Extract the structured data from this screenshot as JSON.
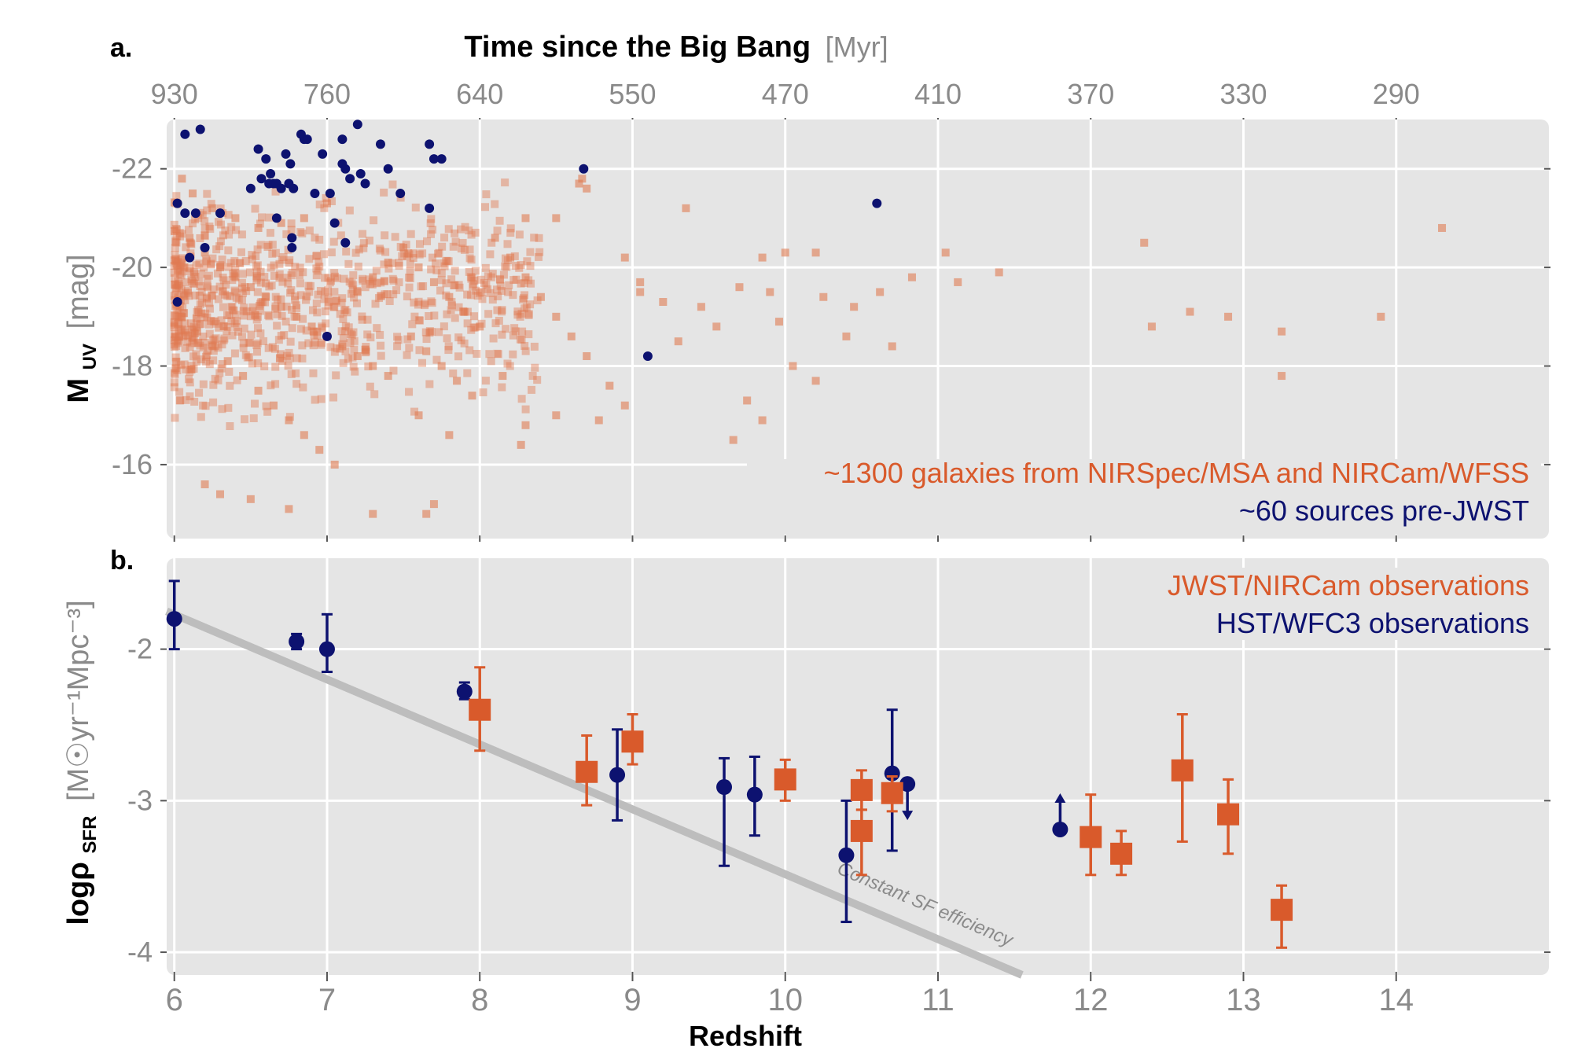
{
  "chart_data": [
    {
      "panel": "a.",
      "type": "scatter",
      "top_axis": {
        "title": "Time since the Big Bang",
        "unit": "[Myr]",
        "tick_labels": [
          "930",
          "760",
          "640",
          "550",
          "470",
          "410",
          "370",
          "330",
          "290"
        ],
        "tick_redshifts": [
          6,
          7,
          8,
          9,
          10,
          11,
          12,
          13,
          14
        ]
      },
      "ylabel": "M",
      "ylabel_sub": "UV",
      "ylabel_unit": "[mag]",
      "ylim": [
        -14.5,
        -23.0
      ],
      "yticks": [
        -22,
        -20,
        -18,
        -16
      ],
      "xlim": [
        5.95,
        15.0
      ],
      "legend": {
        "orange": "~1300 galaxies from NIRSpec/MSA and NIRCam/WFSS",
        "navy": "~60 sources pre-JWST"
      },
      "colors": {
        "orange": "#e07b52",
        "navy": "#0d1270"
      },
      "series_navy_pre_jwst": [
        [
          6.07,
          -22.7
        ],
        [
          6.17,
          -22.8
        ],
        [
          6.02,
          -21.3
        ],
        [
          6.07,
          -21.1
        ],
        [
          6.14,
          -21.1
        ],
        [
          6.02,
          -19.3
        ],
        [
          6.1,
          -20.2
        ],
        [
          6.2,
          -20.4
        ],
        [
          6.3,
          -21.1
        ],
        [
          6.5,
          -21.6
        ],
        [
          6.55,
          -22.4
        ],
        [
          6.6,
          -22.2
        ],
        [
          6.63,
          -21.9
        ],
        [
          6.57,
          -21.8
        ],
        [
          6.65,
          -21.7
        ],
        [
          6.62,
          -21.7
        ],
        [
          6.67,
          -21.7
        ],
        [
          6.7,
          -21.6
        ],
        [
          6.73,
          -22.3
        ],
        [
          6.76,
          -22.1
        ],
        [
          6.75,
          -21.7
        ],
        [
          6.78,
          -21.6
        ],
        [
          6.83,
          -22.7
        ],
        [
          6.85,
          -22.6
        ],
        [
          6.87,
          -22.6
        ],
        [
          6.92,
          -21.5
        ],
        [
          6.97,
          -22.3
        ],
        [
          6.67,
          -21.0
        ],
        [
          6.77,
          -20.6
        ],
        [
          6.77,
          -20.4
        ],
        [
          7.02,
          -21.5
        ],
        [
          7.05,
          -20.9
        ],
        [
          7.1,
          -22.6
        ],
        [
          7.1,
          -22.1
        ],
        [
          7.12,
          -22.0
        ],
        [
          7.15,
          -21.8
        ],
        [
          7.2,
          -22.9
        ],
        [
          7.22,
          -21.9
        ],
        [
          7.25,
          -21.7
        ],
        [
          7.35,
          -22.5
        ],
        [
          7.4,
          -22.0
        ],
        [
          7.48,
          -21.5
        ],
        [
          7.67,
          -22.5
        ],
        [
          7.7,
          -22.2
        ],
        [
          7.75,
          -22.2
        ],
        [
          7.67,
          -21.2
        ],
        [
          7.0,
          -18.6
        ],
        [
          7.12,
          -20.5
        ],
        [
          8.68,
          -22.0
        ],
        [
          9.1,
          -18.2
        ],
        [
          10.6,
          -21.3
        ]
      ],
      "series_orange_jwst_sample": [
        [
          6.05,
          -21.8
        ],
        [
          6.12,
          -21.5
        ],
        [
          6.25,
          -21.2
        ],
        [
          6.4,
          -21.0
        ],
        [
          6.55,
          -20.8
        ],
        [
          6.7,
          -20.9
        ],
        [
          6.85,
          -21.0
        ],
        [
          7.0,
          -21.3
        ],
        [
          6.1,
          -20.6
        ],
        [
          6.2,
          -20.3
        ],
        [
          6.3,
          -20.0
        ],
        [
          6.4,
          -19.8
        ],
        [
          6.5,
          -19.6
        ],
        [
          6.6,
          -19.4
        ],
        [
          6.7,
          -19.2
        ],
        [
          6.8,
          -19.0
        ],
        [
          6.9,
          -18.8
        ],
        [
          7.0,
          -18.6
        ],
        [
          7.1,
          -18.4
        ],
        [
          7.2,
          -18.2
        ],
        [
          7.3,
          -18.0
        ],
        [
          7.4,
          -17.8
        ],
        [
          6.05,
          -19.0
        ],
        [
          6.15,
          -18.7
        ],
        [
          6.25,
          -18.4
        ],
        [
          6.35,
          -18.1
        ],
        [
          6.45,
          -17.8
        ],
        [
          6.55,
          -17.5
        ],
        [
          6.65,
          -17.2
        ],
        [
          6.75,
          -16.9
        ],
        [
          6.85,
          -16.6
        ],
        [
          6.95,
          -16.3
        ],
        [
          7.05,
          -16.0
        ],
        [
          6.2,
          -15.6
        ],
        [
          6.3,
          -15.4
        ],
        [
          6.5,
          -15.3
        ],
        [
          6.75,
          -15.1
        ],
        [
          7.3,
          -15.0
        ],
        [
          7.65,
          -15.0
        ],
        [
          7.7,
          -15.2
        ],
        [
          7.2,
          -19.5
        ],
        [
          7.3,
          -19.8
        ],
        [
          7.4,
          -20.1
        ],
        [
          7.5,
          -20.4
        ],
        [
          7.6,
          -20.0
        ],
        [
          7.7,
          -19.7
        ],
        [
          7.8,
          -19.4
        ],
        [
          7.9,
          -19.1
        ],
        [
          8.0,
          -18.8
        ],
        [
          7.55,
          -18.6
        ],
        [
          7.65,
          -18.3
        ],
        [
          7.75,
          -18.0
        ],
        [
          7.85,
          -17.7
        ],
        [
          7.95,
          -17.4
        ],
        [
          7.6,
          -17.0
        ],
        [
          7.8,
          -16.6
        ],
        [
          8.1,
          -20.6
        ],
        [
          8.2,
          -20.2
        ],
        [
          8.3,
          -19.8
        ],
        [
          8.4,
          -19.4
        ],
        [
          8.5,
          -19.0
        ],
        [
          8.6,
          -18.6
        ],
        [
          8.7,
          -18.2
        ],
        [
          8.3,
          -21.0
        ],
        [
          8.5,
          -21.0
        ],
        [
          8.67,
          -21.8
        ],
        [
          8.65,
          -21.7
        ],
        [
          8.7,
          -21.6
        ],
        [
          8.85,
          -17.6
        ],
        [
          8.95,
          -17.2
        ],
        [
          8.5,
          -17.0
        ],
        [
          8.3,
          -16.8
        ],
        [
          8.15,
          -17.8
        ],
        [
          8.27,
          -16.4
        ],
        [
          8.78,
          -16.9
        ],
        [
          9.05,
          -19.7
        ],
        [
          9.05,
          -19.5
        ],
        [
          9.2,
          -19.3
        ],
        [
          9.3,
          -18.5
        ],
        [
          9.45,
          -19.2
        ],
        [
          9.55,
          -18.8
        ],
        [
          9.7,
          -19.6
        ],
        [
          9.85,
          -20.2
        ],
        [
          9.9,
          -19.5
        ],
        [
          9.96,
          -18.9
        ],
        [
          9.66,
          -16.5
        ],
        [
          9.85,
          -16.9
        ],
        [
          9.75,
          -17.3
        ],
        [
          10.0,
          -20.3
        ],
        [
          10.2,
          -20.3
        ],
        [
          10.25,
          -19.4
        ],
        [
          10.45,
          -19.2
        ],
        [
          10.4,
          -18.6
        ],
        [
          10.7,
          -18.4
        ],
        [
          10.62,
          -19.5
        ],
        [
          10.83,
          -19.8
        ],
        [
          10.05,
          -18.0
        ],
        [
          10.2,
          -17.7
        ],
        [
          11.05,
          -20.3
        ],
        [
          11.13,
          -19.7
        ],
        [
          11.4,
          -19.9
        ],
        [
          9.35,
          -21.2
        ],
        [
          8.95,
          -20.2
        ],
        [
          12.35,
          -20.5
        ],
        [
          12.4,
          -18.8
        ],
        [
          12.65,
          -19.1
        ],
        [
          12.9,
          -19.0
        ],
        [
          13.25,
          -18.7
        ],
        [
          13.25,
          -17.8
        ],
        [
          13.9,
          -19.0
        ],
        [
          14.3,
          -20.8
        ]
      ]
    },
    {
      "panel": "b.",
      "type": "scatter",
      "ylabel": "logρ",
      "ylabel_sub": "SFR",
      "ylabel_unit": "[M☉yr⁻¹Mpc⁻³]",
      "xlabel": "Redshift",
      "xlim": [
        5.95,
        15.0
      ],
      "ylim": [
        -4.15,
        -1.4
      ],
      "xticks": [
        6,
        7,
        8,
        9,
        10,
        11,
        12,
        13,
        14
      ],
      "yticks": [
        -2,
        -3,
        -4
      ],
      "ytick_labels": [
        "-2",
        "-3",
        "-4"
      ],
      "legend": {
        "orange": "JWST/NIRCam observations",
        "navy": "HST/WFC3 observations"
      },
      "fit_line": {
        "label": "Constant SF efficiency",
        "x": [
          5.95,
          11.55
        ],
        "y": [
          -1.75,
          -4.15
        ],
        "color": "#bdbdbd"
      },
      "series_navy_hst": [
        {
          "x": 6.0,
          "y": -1.8,
          "lo": -2.0,
          "hi": -1.55
        },
        {
          "x": 6.8,
          "y": -1.95,
          "lo": -2.0,
          "hi": -1.9
        },
        {
          "x": 7.0,
          "y": -2.0,
          "lo": -2.15,
          "hi": -1.77
        },
        {
          "x": 7.9,
          "y": -2.28,
          "lo": -2.33,
          "hi": -2.22
        },
        {
          "x": 8.9,
          "y": -2.83,
          "lo": -3.13,
          "hi": -2.53
        },
        {
          "x": 9.6,
          "y": -2.91,
          "lo": -3.43,
          "hi": -2.72
        },
        {
          "x": 9.8,
          "y": -2.96,
          "lo": -3.23,
          "hi": -2.71
        },
        {
          "x": 10.4,
          "y": -3.36,
          "lo": -3.8,
          "hi": -3.0
        },
        {
          "x": 10.7,
          "y": -2.82,
          "lo": -3.33,
          "hi": -2.4
        },
        {
          "x": 10.8,
          "y": -2.89,
          "limit": "upper"
        },
        {
          "x": 11.8,
          "y": -3.19,
          "limit": "lower"
        }
      ],
      "series_orange_jwst": [
        {
          "x": 8.0,
          "y": -2.4,
          "lo": -2.67,
          "hi": -2.12
        },
        {
          "x": 8.7,
          "y": -2.81,
          "lo": -3.03,
          "hi": -2.57
        },
        {
          "x": 9.0,
          "y": -2.61,
          "lo": -2.76,
          "hi": -2.43
        },
        {
          "x": 10.0,
          "y": -2.86,
          "lo": -3.0,
          "hi": -2.73
        },
        {
          "x": 10.5,
          "y": -2.93,
          "lo": -3.06,
          "hi": -2.8
        },
        {
          "x": 10.5,
          "y": -3.2,
          "lo": -3.49,
          "hi": -3.06
        },
        {
          "x": 10.7,
          "y": -2.95,
          "lo": -3.07,
          "hi": -2.84
        },
        {
          "x": 12.0,
          "y": -3.24,
          "lo": -3.49,
          "hi": -2.96
        },
        {
          "x": 12.2,
          "y": -3.35,
          "lo": -3.49,
          "hi": -3.2
        },
        {
          "x": 12.6,
          "y": -2.8,
          "lo": -3.27,
          "hi": -2.43
        },
        {
          "x": 12.9,
          "y": -3.09,
          "lo": -3.35,
          "hi": -2.86
        },
        {
          "x": 13.25,
          "y": -3.72,
          "lo": -3.97,
          "hi": -3.56
        }
      ]
    }
  ]
}
